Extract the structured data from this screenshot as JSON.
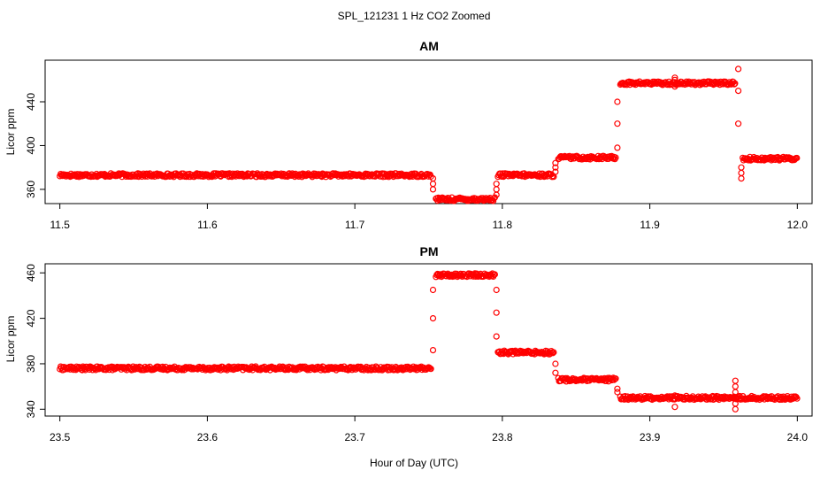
{
  "title": "SPL_121231  1 Hz CO2 Zoomed",
  "xlabel": "Hour of Day (UTC)",
  "chart_data": [
    {
      "type": "scatter",
      "title": "AM",
      "xlabel": "",
      "ylabel": "Licor ppm",
      "xlim": [
        11.49,
        12.01
      ],
      "ylim": [
        347,
        478
      ],
      "xticks": [
        11.5,
        11.6,
        11.7,
        11.8,
        11.9,
        12.0
      ],
      "xtick_labels": [
        "11.5",
        "11.6",
        "11.7",
        "11.8",
        "11.9",
        "12.0"
      ],
      "yticks": [
        360,
        400,
        440
      ],
      "ytick_labels": [
        "360",
        "400",
        "440"
      ],
      "marker": "open-circle",
      "color": "#ff0000",
      "grid": false,
      "levels": [
        {
          "x_start": 11.5,
          "x_end": 11.752,
          "y": 373
        },
        {
          "x_start": 11.755,
          "x_end": 11.795,
          "y": 351
        },
        {
          "x_start": 11.797,
          "x_end": 11.835,
          "y": 373
        },
        {
          "x_start": 11.838,
          "x_end": 11.877,
          "y": 389
        },
        {
          "x_start": 11.88,
          "x_end": 11.958,
          "y": 457
        },
        {
          "x_start": 11.963,
          "x_end": 12.0,
          "y": 388
        }
      ],
      "transitions": [
        {
          "x": 11.753,
          "y": [
            360,
            365,
            370
          ]
        },
        {
          "x": 11.796,
          "y": [
            355,
            360,
            365
          ]
        },
        {
          "x": 11.836,
          "y": [
            376,
            380,
            384
          ]
        },
        {
          "x": 11.878,
          "y": [
            398,
            420,
            440
          ]
        },
        {
          "x": 11.917,
          "y": [
            454,
            460,
            462
          ]
        },
        {
          "x": 11.96,
          "y": [
            470,
            450,
            420
          ]
        },
        {
          "x": 11.962,
          "y": [
            370,
            375,
            380
          ]
        }
      ]
    },
    {
      "type": "scatter",
      "title": "PM",
      "xlabel": "Hour of Day (UTC)",
      "ylabel": "Licor ppm",
      "xlim": [
        23.49,
        24.01
      ],
      "ylim": [
        334,
        468
      ],
      "xticks": [
        23.5,
        23.6,
        23.7,
        23.8,
        23.9,
        24.0
      ],
      "xtick_labels": [
        "23.5",
        "23.6",
        "23.7",
        "23.8",
        "23.9",
        "24.0"
      ],
      "yticks": [
        340,
        380,
        420,
        460
      ],
      "ytick_labels": [
        "340",
        "380",
        "420",
        "460"
      ],
      "marker": "open-circle",
      "color": "#ff0000",
      "grid": false,
      "levels": [
        {
          "x_start": 23.5,
          "x_end": 23.752,
          "y": 376
        },
        {
          "x_start": 23.755,
          "x_end": 23.795,
          "y": 458
        },
        {
          "x_start": 23.797,
          "x_end": 23.835,
          "y": 390
        },
        {
          "x_start": 23.838,
          "x_end": 23.877,
          "y": 366
        },
        {
          "x_start": 23.88,
          "x_end": 24.0,
          "y": 350
        }
      ],
      "transitions": [
        {
          "x": 23.753,
          "y": [
            392,
            420,
            445
          ]
        },
        {
          "x": 23.796,
          "y": [
            445,
            425,
            404
          ]
        },
        {
          "x": 23.836,
          "y": [
            380,
            372
          ]
        },
        {
          "x": 23.878,
          "y": [
            358,
            355
          ]
        },
        {
          "x": 23.917,
          "y": [
            342,
            352
          ]
        },
        {
          "x": 23.958,
          "y": [
            340,
            345,
            355,
            360,
            365
          ]
        }
      ]
    }
  ]
}
